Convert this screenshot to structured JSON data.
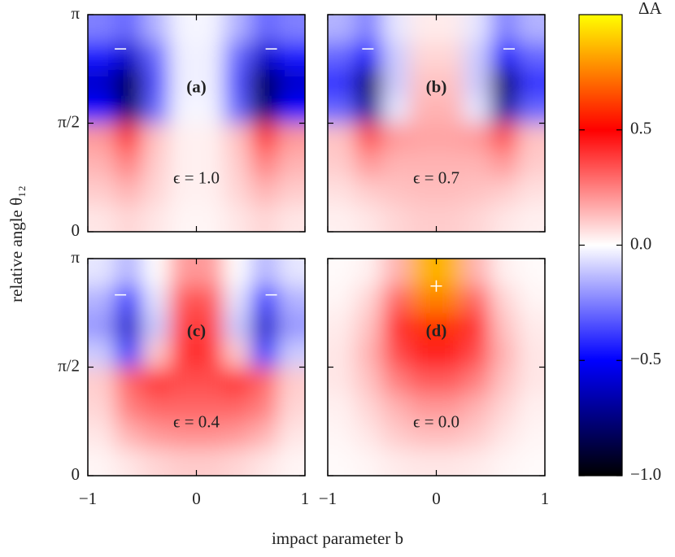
{
  "chart_data": {
    "type": "heatmap",
    "xlabel": "impact parameter b",
    "ylabel": "relative angle θ₁₂",
    "xlim": [
      -1,
      1
    ],
    "ylim": [
      0,
      3.14159
    ],
    "xticks": [
      {
        "value": -1,
        "label": "−1"
      },
      0,
      1
    ],
    "yticks": [
      0,
      {
        "value": 1.5708,
        "label": "π/2"
      },
      {
        "value": 3.14159,
        "label": "π"
      }
    ],
    "x": [
      -0.875,
      -0.625,
      -0.375,
      -0.125,
      0.125,
      0.375,
      0.625,
      0.875
    ],
    "y": [
      0.196,
      0.589,
      0.982,
      1.374,
      1.767,
      2.16,
      2.553,
      2.945
    ],
    "zlim": [
      -1,
      1
    ],
    "colorbar_label": "ΔA",
    "colorbar_ticks": [
      {
        "value": -1,
        "label": "−1.0"
      },
      {
        "value": -0.5,
        "label": "−0.5"
      },
      {
        "value": 0,
        "label": "0.0"
      },
      0.5
    ],
    "colorscale": [
      [
        -1,
        "#000000"
      ],
      [
        -0.75,
        "#000080"
      ],
      [
        -0.5,
        "#0000ff"
      ],
      [
        0,
        "#ffffff"
      ],
      [
        0.5,
        "#ff0000"
      ],
      [
        0.75,
        "#ff8000"
      ],
      [
        1,
        "#ffff00"
      ]
    ],
    "panels": [
      {
        "label": "(a)",
        "annotation": "ϵ = 1.0",
        "markers": [
          {
            "text": "−",
            "x": -0.7,
            "y": 2.61
          },
          {
            "text": "−",
            "x": 0.69,
            "y": 2.61
          }
        ],
        "z": [
          [
            0.05,
            0.08,
            0.05,
            0.02,
            0.02,
            0.05,
            0.08,
            0.05
          ],
          [
            0.1,
            0.15,
            0.08,
            0.03,
            0.03,
            0.08,
            0.15,
            0.1
          ],
          [
            0.15,
            0.25,
            0.1,
            0.03,
            0.03,
            0.1,
            0.25,
            0.15
          ],
          [
            0.2,
            0.4,
            0.12,
            0.03,
            0.03,
            0.12,
            0.4,
            0.2
          ],
          [
            -0.5,
            -0.8,
            -0.3,
            -0.02,
            -0.02,
            -0.3,
            -0.8,
            -0.5
          ],
          [
            -0.6,
            -0.85,
            -0.35,
            -0.03,
            -0.03,
            -0.35,
            -0.85,
            -0.6
          ],
          [
            -0.45,
            -0.6,
            -0.3,
            -0.03,
            -0.03,
            -0.3,
            -0.6,
            -0.45
          ],
          [
            -0.25,
            -0.3,
            -0.15,
            -0.02,
            -0.02,
            -0.15,
            -0.3,
            -0.25
          ]
        ]
      },
      {
        "label": "(b)",
        "annotation": "ϵ = 0.7",
        "markers": [
          {
            "text": "−",
            "x": -0.63,
            "y": 2.61
          },
          {
            "text": "−",
            "x": 0.67,
            "y": 2.61
          }
        ],
        "z": [
          [
            0.03,
            0.05,
            0.08,
            0.1,
            0.1,
            0.08,
            0.05,
            0.03
          ],
          [
            0.06,
            0.1,
            0.12,
            0.13,
            0.13,
            0.12,
            0.1,
            0.06
          ],
          [
            0.1,
            0.2,
            0.15,
            0.15,
            0.15,
            0.15,
            0.2,
            0.1
          ],
          [
            0.12,
            0.35,
            0.2,
            0.18,
            0.18,
            0.2,
            0.35,
            0.12
          ],
          [
            -0.3,
            -0.7,
            -0.05,
            0.15,
            0.15,
            -0.05,
            -0.7,
            -0.3
          ],
          [
            -0.4,
            -0.8,
            -0.1,
            0.12,
            0.12,
            -0.1,
            -0.8,
            -0.4
          ],
          [
            -0.3,
            -0.5,
            -0.1,
            0.08,
            0.08,
            -0.1,
            -0.5,
            -0.3
          ],
          [
            -0.15,
            -0.25,
            -0.05,
            0.04,
            0.04,
            -0.05,
            -0.25,
            -0.15
          ]
        ]
      },
      {
        "label": "(c)",
        "annotation": "ϵ = 0.4",
        "markers": [
          {
            "text": "−",
            "x": -0.7,
            "y": 2.58
          },
          {
            "text": "−",
            "x": 0.69,
            "y": 2.58
          }
        ],
        "z": [
          [
            0.02,
            0.05,
            0.08,
            0.1,
            0.1,
            0.08,
            0.05,
            0.02
          ],
          [
            0.05,
            0.15,
            0.2,
            0.22,
            0.22,
            0.2,
            0.15,
            0.05
          ],
          [
            0.08,
            0.25,
            0.3,
            0.3,
            0.3,
            0.3,
            0.25,
            0.08
          ],
          [
            0.1,
            0.3,
            0.4,
            0.35,
            0.35,
            0.4,
            0.3,
            0.1
          ],
          [
            -0.1,
            -0.4,
            0.1,
            0.4,
            0.4,
            0.1,
            -0.4,
            -0.1
          ],
          [
            -0.2,
            -0.6,
            -0.1,
            0.38,
            0.38,
            -0.1,
            -0.6,
            -0.2
          ],
          [
            -0.15,
            -0.4,
            -0.05,
            0.33,
            0.33,
            -0.05,
            -0.4,
            -0.15
          ],
          [
            -0.05,
            -0.15,
            0.0,
            0.2,
            0.2,
            0.0,
            -0.15,
            -0.05
          ]
        ]
      },
      {
        "label": "(d)",
        "annotation": "ϵ = 0.0",
        "markers": [
          {
            "text": "+",
            "x": 0.0,
            "y": 2.71
          }
        ],
        "z": [
          [
            0.01,
            0.02,
            0.04,
            0.05,
            0.05,
            0.04,
            0.02,
            0.01
          ],
          [
            0.02,
            0.05,
            0.1,
            0.13,
            0.13,
            0.1,
            0.05,
            0.02
          ],
          [
            0.03,
            0.08,
            0.15,
            0.2,
            0.2,
            0.15,
            0.08,
            0.03
          ],
          [
            0.05,
            0.12,
            0.25,
            0.32,
            0.32,
            0.25,
            0.12,
            0.05
          ],
          [
            0.05,
            0.15,
            0.35,
            0.45,
            0.45,
            0.35,
            0.15,
            0.05
          ],
          [
            0.04,
            0.12,
            0.4,
            0.6,
            0.6,
            0.4,
            0.12,
            0.04
          ],
          [
            0.02,
            0.08,
            0.3,
            0.75,
            0.75,
            0.3,
            0.08,
            0.02
          ],
          [
            0.01,
            0.03,
            0.15,
            0.85,
            0.85,
            0.15,
            0.03,
            0.01
          ]
        ]
      }
    ]
  }
}
